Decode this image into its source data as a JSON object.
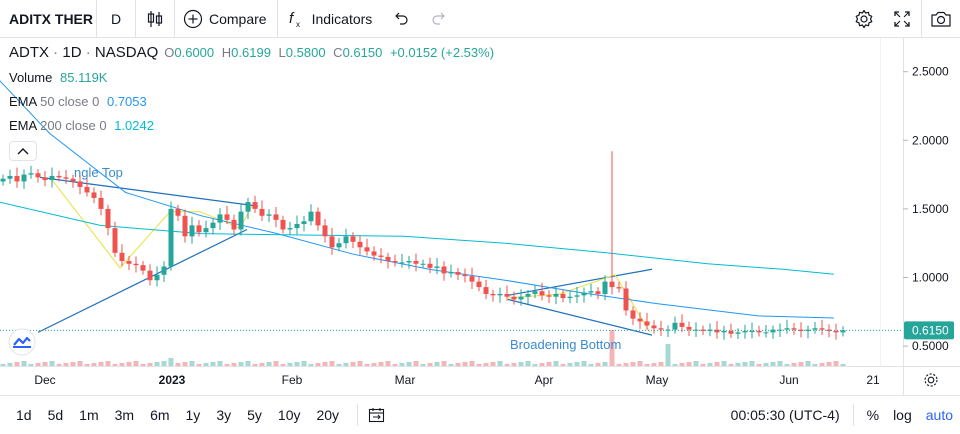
{
  "toolbar": {
    "symbol": "ADITX THER",
    "interval": "D",
    "compare_label": "Compare",
    "indicators_label": "Indicators"
  },
  "legend": {
    "symbol": "ADTX",
    "interval": "1D",
    "exchange": "NASDAQ",
    "o_label": "O",
    "o": "0.6000",
    "h_label": "H",
    "h": "0.6199",
    "l_label": "L",
    "l": "0.5800",
    "c_label": "C",
    "c": "0.6150",
    "change": "+0.0152 (+2.53%)",
    "volume_label": "Volume",
    "volume_value": "85.119K",
    "ema50_label": "EMA",
    "ema50_params": "50 close 0",
    "ema50_value": "0.7053",
    "ema200_label": "EMA",
    "ema200_params": "200 close 0",
    "ema200_value": "1.0242"
  },
  "bottom": {
    "ranges": [
      "1d",
      "5d",
      "1m",
      "3m",
      "6m",
      "1y",
      "3y",
      "5y",
      "10y",
      "20y"
    ],
    "time": "00:05:30 (UTC-4)",
    "percent": "%",
    "log": "log",
    "auto": "auto"
  },
  "colors": {
    "up": "#26a69a",
    "down": "#ef5350",
    "ema50": "#2196f3",
    "ema200": "#00bcd4",
    "pattern_line": "#1e6fba",
    "zigzag": "#e8e34a",
    "price_label_bg": "#26a69a"
  },
  "chart_data": {
    "type": "candlestick",
    "y_axis": {
      "ticks": [
        2.5,
        2.0,
        1.5,
        1.0,
        0.5
      ],
      "tick_labels": [
        "2.5000",
        "2.0000",
        "1.5000",
        "1.0000",
        "0.5000"
      ],
      "range": [
        0.3,
        2.75
      ],
      "last_price": 0.615,
      "last_price_label": "0.6150"
    },
    "x_axis": {
      "tick_labels": [
        "Dec",
        "2023",
        "Feb",
        "Mar",
        "Apr",
        "May",
        "Jun",
        "21"
      ]
    },
    "annotations": [
      "ngle Top",
      "Broadening Bottom"
    ],
    "close": [
      1.72,
      1.74,
      1.7,
      1.75,
      1.76,
      1.73,
      1.71,
      1.74,
      1.73,
      1.72,
      1.7,
      1.66,
      1.62,
      1.58,
      1.5,
      1.36,
      1.18,
      1.12,
      1.1,
      1.09,
      1.05,
      0.98,
      1.02,
      1.08,
      1.5,
      1.45,
      1.3,
      1.38,
      1.33,
      1.36,
      1.4,
      1.46,
      1.42,
      1.35,
      1.48,
      1.55,
      1.5,
      1.45,
      1.46,
      1.42,
      1.35,
      1.36,
      1.39,
      1.41,
      1.48,
      1.38,
      1.3,
      1.22,
      1.25,
      1.3,
      1.26,
      1.22,
      1.19,
      1.16,
      1.15,
      1.12,
      1.11,
      1.11,
      1.12,
      1.1,
      1.1,
      1.07,
      1.08,
      1.03,
      1.04,
      1.02,
      1.01,
      0.97,
      0.93,
      0.88,
      0.87,
      0.88,
      0.86,
      0.84,
      0.86,
      0.88,
      0.9,
      0.87,
      0.86,
      0.88,
      0.85,
      0.86,
      0.87,
      0.89,
      0.9,
      0.88,
      0.97,
      0.93,
      0.92,
      0.76,
      0.7,
      0.68,
      0.65,
      0.63,
      0.62,
      0.62,
      0.67,
      0.64,
      0.62,
      0.62,
      0.61,
      0.62,
      0.6,
      0.61,
      0.59,
      0.6,
      0.61,
      0.61,
      0.6,
      0.6,
      0.62,
      0.62,
      0.63,
      0.62,
      0.61,
      0.62,
      0.63,
      0.62,
      0.61,
      0.6,
      0.615
    ],
    "ema50": [
      [
        0,
        2.44
      ],
      [
        20,
        2.05
      ],
      [
        50,
        1.62
      ],
      [
        80,
        1.45
      ],
      [
        110,
        1.32
      ],
      [
        140,
        1.17
      ],
      [
        170,
        1.06
      ],
      [
        200,
        0.98
      ],
      [
        230,
        0.89
      ],
      [
        260,
        0.81
      ],
      [
        300,
        0.72
      ],
      [
        330,
        0.705
      ]
    ],
    "ema200": [
      [
        0,
        1.55
      ],
      [
        40,
        1.38
      ],
      [
        80,
        1.32
      ],
      [
        120,
        1.31
      ],
      [
        160,
        1.3
      ],
      [
        200,
        1.25
      ],
      [
        240,
        1.18
      ],
      [
        280,
        1.1
      ],
      [
        310,
        1.06
      ],
      [
        330,
        1.024
      ]
    ]
  }
}
